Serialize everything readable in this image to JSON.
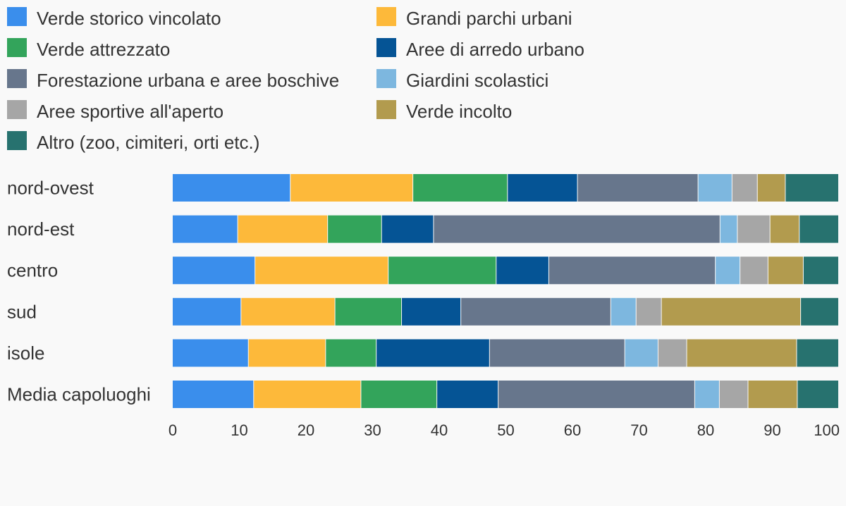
{
  "chart_data": {
    "type": "bar",
    "orientation": "horizontal",
    "stacked": true,
    "title": "",
    "xlabel": "",
    "ylabel": "",
    "xlim": [
      0,
      100
    ],
    "xticks": [
      0,
      10,
      20,
      30,
      40,
      50,
      60,
      70,
      80,
      90,
      100
    ],
    "grid": false,
    "legend_position": "top",
    "categories": [
      "nord-ovest",
      "nord-est",
      "centro",
      "sud",
      "isole",
      "Media capoluoghi"
    ],
    "series": [
      {
        "name": "Verde storico vincolato",
        "color": "#3a8eec",
        "values": [
          17.7,
          9.8,
          12.4,
          10.3,
          11.4,
          12.2
        ]
      },
      {
        "name": "Grandi parchi urbani",
        "color": "#fdb93a",
        "values": [
          18.4,
          13.5,
          20.0,
          14.1,
          11.6,
          16.1
        ]
      },
      {
        "name": "Verde attrezzato",
        "color": "#33a45b",
        "values": [
          14.2,
          8.1,
          16.2,
          10.0,
          7.6,
          11.4
        ]
      },
      {
        "name": "Aree di arredo urbano",
        "color": "#055495",
        "values": [
          10.5,
          7.8,
          7.9,
          8.9,
          17.0,
          9.2
        ]
      },
      {
        "name": "Forestazione urbana e aree boschive",
        "color": "#67768c",
        "values": [
          18.1,
          43.0,
          25.0,
          22.5,
          20.3,
          29.5
        ]
      },
      {
        "name": "Giardini scolastici",
        "color": "#7db7df",
        "values": [
          5.1,
          2.6,
          3.7,
          3.8,
          5.0,
          3.7
        ]
      },
      {
        "name": "Aree sportive all'aperto",
        "color": "#a6a6a6",
        "values": [
          3.8,
          4.9,
          4.2,
          3.8,
          4.3,
          4.3
        ]
      },
      {
        "name": "Verde incolto",
        "color": "#b29b4e",
        "values": [
          4.2,
          4.4,
          5.3,
          20.9,
          16.5,
          7.4
        ]
      },
      {
        "name": "Altro (zoo, cimiteri, orti etc.)",
        "color": "#27726f",
        "values": [
          8.0,
          5.9,
          5.3,
          5.7,
          6.3,
          6.2
        ]
      }
    ]
  }
}
